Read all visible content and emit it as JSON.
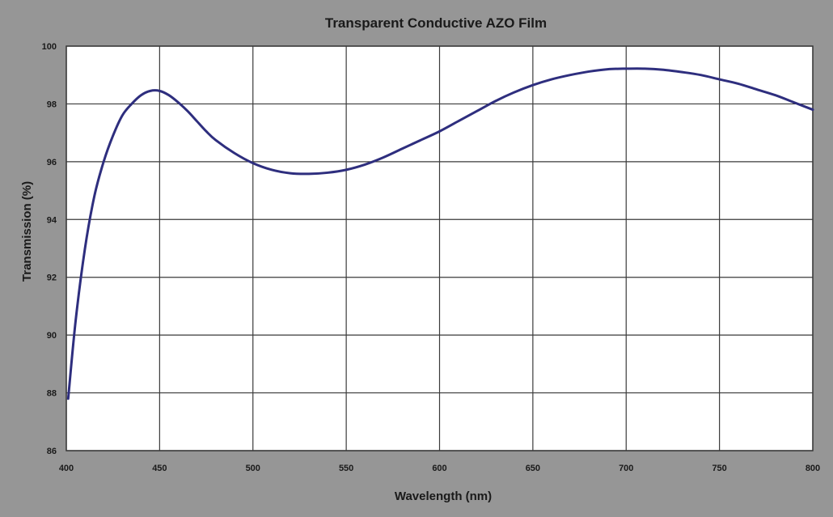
{
  "chart_data": {
    "type": "line",
    "title": "Transparent Conductive AZO Film",
    "xlabel": "Wavelength (nm)",
    "ylabel": "Transmission (%)",
    "xlim": [
      400,
      800
    ],
    "ylim": [
      86,
      100
    ],
    "x_ticks": [
      400,
      450,
      500,
      550,
      600,
      650,
      700,
      750,
      800
    ],
    "y_ticks": [
      86,
      88,
      90,
      92,
      94,
      96,
      98,
      100
    ],
    "grid": true,
    "legend": "none",
    "colors": {
      "background": "#969696",
      "plot_area": "#ffffff",
      "grid": "#3a3a3a",
      "line": "#2e2e7e"
    },
    "series": [
      {
        "x": [
          401,
          405,
          410,
          415,
          420,
          425,
          430,
          435,
          440,
          445,
          450,
          455,
          460,
          465,
          470,
          475,
          480,
          490,
          500,
          510,
          520,
          530,
          540,
          550,
          560,
          570,
          580,
          590,
          600,
          610,
          620,
          630,
          640,
          650,
          660,
          670,
          680,
          690,
          700,
          710,
          720,
          730,
          740,
          750,
          760,
          770,
          780,
          790,
          800
        ],
        "y": [
          87.8,
          90.5,
          93.0,
          94.8,
          96.0,
          96.9,
          97.6,
          98.0,
          98.3,
          98.45,
          98.45,
          98.3,
          98.05,
          97.75,
          97.4,
          97.05,
          96.75,
          96.3,
          95.95,
          95.72,
          95.6,
          95.58,
          95.62,
          95.72,
          95.9,
          96.15,
          96.45,
          96.75,
          97.05,
          97.4,
          97.75,
          98.1,
          98.4,
          98.65,
          98.85,
          99.0,
          99.12,
          99.2,
          99.22,
          99.22,
          99.18,
          99.1,
          99.0,
          98.85,
          98.7,
          98.5,
          98.3,
          98.05,
          97.8
        ]
      }
    ]
  }
}
